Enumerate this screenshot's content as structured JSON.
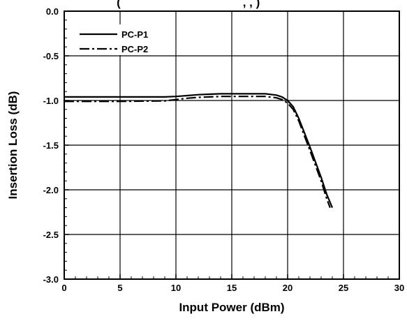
{
  "chart_data": {
    "type": "line",
    "title": "(",
    "title_suffix": ",   ,    )",
    "xlabel": "Input Power (dBm)",
    "ylabel": "Insertion Loss (dB)",
    "xlim": [
      0,
      30
    ],
    "ylim": [
      -3.0,
      0.0
    ],
    "xticks": [
      0,
      5,
      10,
      15,
      20,
      25,
      30
    ],
    "yticks": [
      0.0,
      -0.5,
      -1.0,
      -1.5,
      -2.0,
      -2.5,
      -3.0
    ],
    "xtick_labels": [
      "0",
      "5",
      "10",
      "15",
      "20",
      "25",
      "30"
    ],
    "ytick_labels": [
      "0.0",
      "-0.5",
      "-1.0",
      "-1.5",
      "-2.0",
      "-2.5",
      "-3.0"
    ],
    "grid": true,
    "legend_position": "top-left",
    "series": [
      {
        "name": "PC-P1",
        "line_style": "solid",
        "color": "#000000",
        "x": [
          0,
          5,
          9,
          10,
          11,
          12,
          13,
          14,
          15,
          16,
          17,
          18,
          19,
          19.5,
          20,
          20.5,
          21,
          22,
          23,
          23.5,
          24
        ],
        "y": [
          -0.96,
          -0.96,
          -0.96,
          -0.955,
          -0.945,
          -0.935,
          -0.93,
          -0.925,
          -0.925,
          -0.925,
          -0.925,
          -0.925,
          -0.94,
          -0.96,
          -1.0,
          -1.07,
          -1.2,
          -1.52,
          -1.86,
          -2.05,
          -2.2
        ]
      },
      {
        "name": "PC-P2",
        "line_style": "dashed",
        "color": "#000000",
        "x": [
          0,
          5,
          9,
          10,
          11,
          12,
          13,
          14,
          15,
          16,
          17,
          18,
          19,
          19.5,
          20,
          20.5,
          21,
          22,
          23,
          23.5,
          23.8
        ],
        "y": [
          -1.01,
          -1.01,
          -1.005,
          -0.99,
          -0.975,
          -0.965,
          -0.96,
          -0.955,
          -0.955,
          -0.955,
          -0.955,
          -0.955,
          -0.97,
          -0.99,
          -1.03,
          -1.1,
          -1.23,
          -1.56,
          -1.9,
          -2.1,
          -2.2
        ]
      }
    ]
  }
}
